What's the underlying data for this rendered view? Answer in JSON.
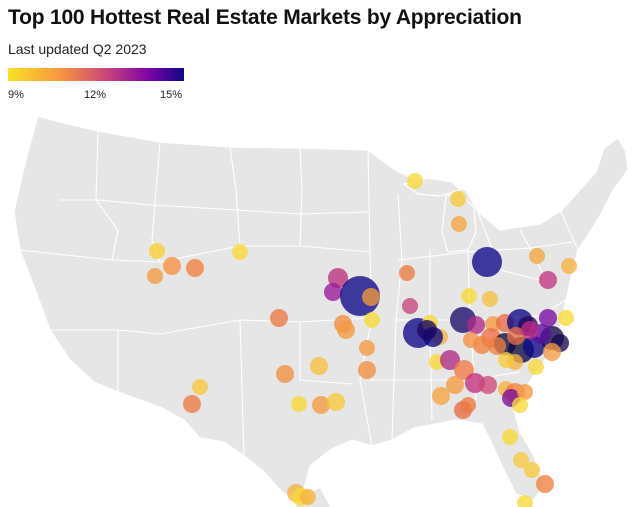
{
  "title": "Top 100 Hottest Real Estate Markets by Appreciation",
  "subtitle": "Last updated Q2 2023",
  "legend": {
    "ticks": [
      "9%",
      "12%",
      "15%"
    ],
    "colors": [
      "#f7e225",
      "#f89540",
      "#cc4778",
      "#7e03a8",
      "#0d0887"
    ]
  },
  "map": {
    "land_color": "#e6e6e6",
    "border_color": "#ffffff",
    "marker_opacity": 0.78
  }
}
